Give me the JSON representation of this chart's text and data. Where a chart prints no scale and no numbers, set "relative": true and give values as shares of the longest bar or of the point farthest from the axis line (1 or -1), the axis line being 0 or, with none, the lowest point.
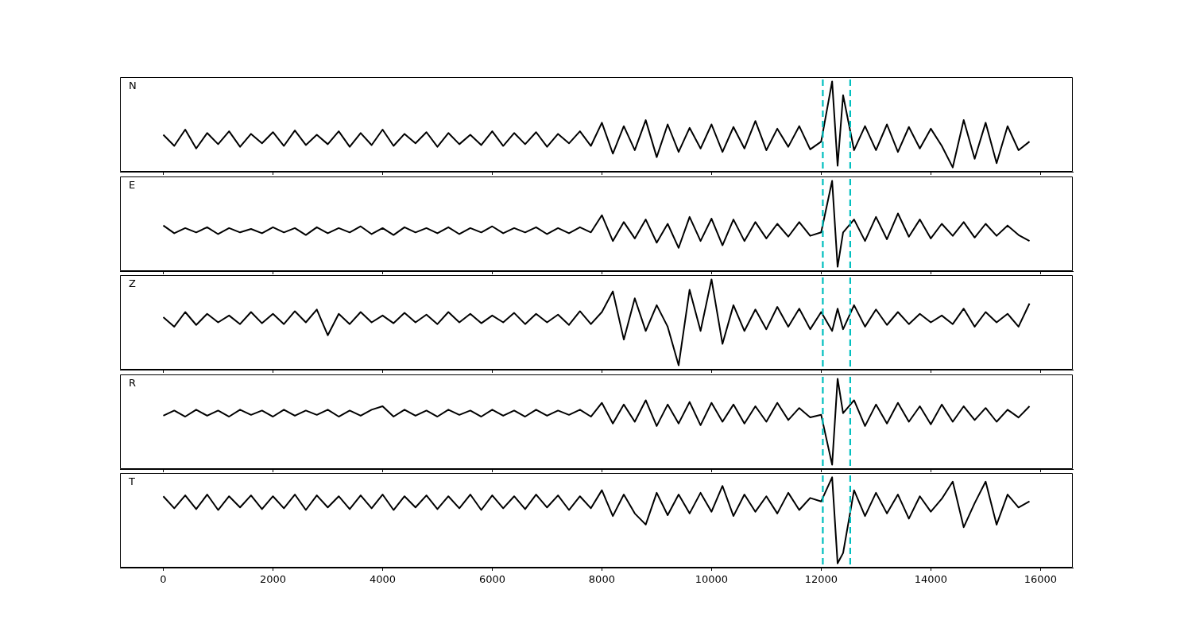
{
  "chart_data": [
    {
      "type": "line",
      "title": "N",
      "relative": true,
      "tick_labels": false,
      "xlim": [
        -790,
        16590
      ],
      "xticks": [
        0,
        2000,
        4000,
        6000,
        8000,
        10000,
        12000,
        14000,
        16000
      ],
      "x": [
        0,
        200,
        400,
        600,
        800,
        1000,
        1200,
        1400,
        1600,
        1800,
        2000,
        2200,
        2400,
        2600,
        2800,
        3000,
        3200,
        3400,
        3600,
        3800,
        4000,
        4200,
        4400,
        4600,
        4800,
        5000,
        5200,
        5400,
        5600,
        5800,
        6000,
        6200,
        6400,
        6600,
        6800,
        7000,
        7200,
        7400,
        7600,
        7800,
        8000,
        8200,
        8400,
        8600,
        8800,
        9000,
        9200,
        9400,
        9600,
        9800,
        10000,
        10200,
        10400,
        10600,
        10800,
        11000,
        11200,
        11400,
        11600,
        11800,
        12000,
        12200,
        12300,
        12400,
        12600,
        12800,
        13000,
        13200,
        13400,
        13600,
        13800,
        14000,
        14200,
        14400,
        14600,
        14800,
        15000,
        15200,
        15400,
        15600,
        15800
      ],
      "series": [
        {
          "color": "#000000",
          "values": [
            0.38,
            0.25,
            0.44,
            0.22,
            0.4,
            0.27,
            0.42,
            0.24,
            0.39,
            0.28,
            0.41,
            0.25,
            0.43,
            0.26,
            0.38,
            0.27,
            0.42,
            0.24,
            0.4,
            0.26,
            0.44,
            0.25,
            0.39,
            0.28,
            0.41,
            0.24,
            0.4,
            0.27,
            0.38,
            0.26,
            0.42,
            0.25,
            0.4,
            0.27,
            0.41,
            0.24,
            0.39,
            0.28,
            0.42,
            0.25,
            0.52,
            0.16,
            0.48,
            0.2,
            0.55,
            0.12,
            0.5,
            0.18,
            0.46,
            0.22,
            0.5,
            0.18,
            0.47,
            0.22,
            0.54,
            0.2,
            0.45,
            0.24,
            0.48,
            0.21,
            0.3,
            1.0,
            0.02,
            0.84,
            0.2,
            0.48,
            0.2,
            0.5,
            0.18,
            0.47,
            0.22,
            0.45,
            0.25,
            0,
            0.55,
            0.1,
            0.52,
            0.05,
            0.48,
            0.2,
            0.3
          ]
        }
      ],
      "ref_lines": [
        {
          "axis": "x",
          "value": 12030,
          "color": "#00bfbf",
          "line_style": "dashed"
        },
        {
          "axis": "x",
          "value": 12530,
          "color": "#00bfbf",
          "line_style": "dashed"
        }
      ]
    },
    {
      "type": "line",
      "title": "E",
      "relative": true,
      "tick_labels": false,
      "xlim": [
        -790,
        16590
      ],
      "xticks": [
        0,
        2000,
        4000,
        6000,
        8000,
        10000,
        12000,
        14000,
        16000
      ],
      "x": [
        0,
        200,
        400,
        600,
        800,
        1000,
        1200,
        1400,
        1600,
        1800,
        2000,
        2200,
        2400,
        2600,
        2800,
        3000,
        3200,
        3400,
        3600,
        3800,
        4000,
        4200,
        4400,
        4600,
        4800,
        5000,
        5200,
        5400,
        5600,
        5800,
        6000,
        6200,
        6400,
        6600,
        6800,
        7000,
        7200,
        7400,
        7600,
        7800,
        8000,
        8200,
        8400,
        8600,
        8800,
        9000,
        9200,
        9400,
        9600,
        9800,
        10000,
        10200,
        10400,
        10600,
        10800,
        11000,
        11200,
        11400,
        11600,
        11800,
        12000,
        12200,
        12300,
        12400,
        12600,
        12800,
        13000,
        13200,
        13400,
        13600,
        13800,
        14000,
        14200,
        14400,
        14600,
        14800,
        15000,
        15200,
        15400,
        15600,
        15800
      ],
      "series": [
        {
          "color": "#000000",
          "values": [
            0.48,
            0.39,
            0.45,
            0.4,
            0.46,
            0.38,
            0.45,
            0.4,
            0.44,
            0.39,
            0.46,
            0.4,
            0.45,
            0.37,
            0.46,
            0.39,
            0.45,
            0.4,
            0.47,
            0.38,
            0.45,
            0.37,
            0.46,
            0.4,
            0.45,
            0.39,
            0.46,
            0.38,
            0.45,
            0.4,
            0.47,
            0.39,
            0.45,
            0.4,
            0.46,
            0.38,
            0.45,
            0.39,
            0.46,
            0.4,
            0.6,
            0.3,
            0.52,
            0.33,
            0.55,
            0.28,
            0.5,
            0.22,
            0.58,
            0.3,
            0.56,
            0.25,
            0.55,
            0.3,
            0.52,
            0.33,
            0.5,
            0.35,
            0.52,
            0.36,
            0.4,
            1.0,
            0,
            0.4,
            0.55,
            0.3,
            0.58,
            0.32,
            0.62,
            0.35,
            0.55,
            0.33,
            0.5,
            0.36,
            0.52,
            0.34,
            0.5,
            0.36,
            0.48,
            0.37,
            0.3
          ]
        }
      ],
      "ref_lines": [
        {
          "axis": "x",
          "value": 12030,
          "color": "#00bfbf",
          "line_style": "dashed"
        },
        {
          "axis": "x",
          "value": 12530,
          "color": "#00bfbf",
          "line_style": "dashed"
        }
      ]
    },
    {
      "type": "line",
      "title": "Z",
      "relative": true,
      "tick_labels": false,
      "xlim": [
        -790,
        16590
      ],
      "xticks": [
        0,
        2000,
        4000,
        6000,
        8000,
        10000,
        12000,
        14000,
        16000
      ],
      "x": [
        0,
        200,
        400,
        600,
        800,
        1000,
        1200,
        1400,
        1600,
        1800,
        2000,
        2200,
        2400,
        2600,
        2800,
        3000,
        3200,
        3400,
        3600,
        3800,
        4000,
        4200,
        4400,
        4600,
        4800,
        5000,
        5200,
        5400,
        5600,
        5800,
        6000,
        6200,
        6400,
        6600,
        6800,
        7000,
        7200,
        7400,
        7600,
        7800,
        8000,
        8200,
        8400,
        8600,
        8800,
        9000,
        9200,
        9400,
        9600,
        9800,
        10000,
        10200,
        10400,
        10600,
        10800,
        11000,
        11200,
        11400,
        11600,
        11800,
        12000,
        12200,
        12300,
        12400,
        12600,
        12800,
        13000,
        13200,
        13400,
        13600,
        13800,
        14000,
        14200,
        14400,
        14600,
        14800,
        15000,
        15200,
        15400,
        15600,
        15800
      ],
      "series": [
        {
          "color": "#000000",
          "values": [
            0.56,
            0.45,
            0.62,
            0.47,
            0.6,
            0.5,
            0.58,
            0.48,
            0.62,
            0.49,
            0.6,
            0.48,
            0.63,
            0.5,
            0.65,
            0.35,
            0.6,
            0.48,
            0.62,
            0.5,
            0.58,
            0.49,
            0.61,
            0.5,
            0.59,
            0.48,
            0.62,
            0.5,
            0.6,
            0.49,
            0.58,
            0.5,
            0.61,
            0.48,
            0.6,
            0.5,
            0.59,
            0.47,
            0.63,
            0.48,
            0.62,
            0.86,
            0.3,
            0.78,
            0.4,
            0.7,
            0.45,
            0,
            0.88,
            0.4,
            1.0,
            0.25,
            0.7,
            0.4,
            0.65,
            0.42,
            0.68,
            0.45,
            0.66,
            0.42,
            0.62,
            0.4,
            0.66,
            0.42,
            0.7,
            0.45,
            0.65,
            0.47,
            0.62,
            0.48,
            0.6,
            0.5,
            0.58,
            0.48,
            0.66,
            0.45,
            0.62,
            0.5,
            0.6,
            0.45,
            0.72
          ]
        }
      ],
      "ref_lines": [
        {
          "axis": "x",
          "value": 12030,
          "color": "#00bfbf",
          "line_style": "dashed"
        },
        {
          "axis": "x",
          "value": 12530,
          "color": "#00bfbf",
          "line_style": "dashed"
        }
      ]
    },
    {
      "type": "line",
      "title": "R",
      "relative": true,
      "tick_labels": false,
      "xlim": [
        -790,
        16590
      ],
      "xticks": [
        0,
        2000,
        4000,
        6000,
        8000,
        10000,
        12000,
        14000,
        16000
      ],
      "x": [
        0,
        200,
        400,
        600,
        800,
        1000,
        1200,
        1400,
        1600,
        1800,
        2000,
        2200,
        2400,
        2600,
        2800,
        3000,
        3200,
        3400,
        3600,
        3800,
        4000,
        4200,
        4400,
        4600,
        4800,
        5000,
        5200,
        5400,
        5600,
        5800,
        6000,
        6200,
        6400,
        6600,
        6800,
        7000,
        7200,
        7400,
        7600,
        7800,
        8000,
        8200,
        8400,
        8600,
        8800,
        9000,
        9200,
        9400,
        9600,
        9800,
        10000,
        10200,
        10400,
        10600,
        10800,
        11000,
        11200,
        11400,
        11600,
        11800,
        12000,
        12200,
        12300,
        12400,
        12600,
        12800,
        13000,
        13200,
        13400,
        13600,
        13800,
        14000,
        14200,
        14400,
        14600,
        14800,
        15000,
        15200,
        15400,
        15600,
        15800
      ],
      "series": [
        {
          "color": "#000000",
          "values": [
            0.57,
            0.63,
            0.56,
            0.64,
            0.57,
            0.63,
            0.56,
            0.64,
            0.58,
            0.63,
            0.56,
            0.64,
            0.57,
            0.63,
            0.58,
            0.64,
            0.56,
            0.63,
            0.57,
            0.64,
            0.68,
            0.56,
            0.64,
            0.57,
            0.63,
            0.56,
            0.64,
            0.58,
            0.63,
            0.56,
            0.64,
            0.57,
            0.63,
            0.56,
            0.64,
            0.57,
            0.63,
            0.58,
            0.64,
            0.56,
            0.72,
            0.48,
            0.7,
            0.5,
            0.75,
            0.45,
            0.7,
            0.48,
            0.73,
            0.46,
            0.72,
            0.5,
            0.7,
            0.48,
            0.68,
            0.5,
            0.72,
            0.52,
            0.66,
            0.55,
            0.58,
            0,
            1.0,
            0.6,
            0.75,
            0.45,
            0.7,
            0.48,
            0.72,
            0.5,
            0.68,
            0.47,
            0.7,
            0.5,
            0.68,
            0.52,
            0.66,
            0.5,
            0.64,
            0.55,
            0.68
          ]
        }
      ],
      "ref_lines": [
        {
          "axis": "x",
          "value": 12030,
          "color": "#00bfbf",
          "line_style": "dashed"
        },
        {
          "axis": "x",
          "value": 12530,
          "color": "#00bfbf",
          "line_style": "dashed"
        }
      ]
    },
    {
      "type": "line",
      "title": "T",
      "relative": true,
      "tick_labels": "x",
      "xlim": [
        -790,
        16590
      ],
      "xticks": [
        0,
        2000,
        4000,
        6000,
        8000,
        10000,
        12000,
        14000,
        16000
      ],
      "x": [
        0,
        200,
        400,
        600,
        800,
        1000,
        1200,
        1400,
        1600,
        1800,
        2000,
        2200,
        2400,
        2600,
        2800,
        3000,
        3200,
        3400,
        3600,
        3800,
        4000,
        4200,
        4400,
        4600,
        4800,
        5000,
        5200,
        5400,
        5600,
        5800,
        6000,
        6200,
        6400,
        6600,
        6800,
        7000,
        7200,
        7400,
        7600,
        7800,
        8000,
        8200,
        8400,
        8600,
        8800,
        9000,
        9200,
        9400,
        9600,
        9800,
        10000,
        10200,
        10400,
        10600,
        10800,
        11000,
        11200,
        11400,
        11600,
        11800,
        12000,
        12200,
        12300,
        12400,
        12600,
        12800,
        13000,
        13200,
        13400,
        13600,
        13800,
        14000,
        14200,
        14400,
        14600,
        14800,
        15000,
        15200,
        15400,
        15600,
        15800
      ],
      "series": [
        {
          "color": "#000000",
          "values": [
            0.78,
            0.64,
            0.79,
            0.63,
            0.8,
            0.62,
            0.78,
            0.65,
            0.79,
            0.63,
            0.78,
            0.64,
            0.8,
            0.62,
            0.79,
            0.65,
            0.78,
            0.63,
            0.79,
            0.64,
            0.8,
            0.62,
            0.78,
            0.65,
            0.79,
            0.63,
            0.78,
            0.64,
            0.8,
            0.62,
            0.79,
            0.64,
            0.78,
            0.63,
            0.8,
            0.65,
            0.79,
            0.62,
            0.78,
            0.64,
            0.85,
            0.55,
            0.8,
            0.58,
            0.45,
            0.82,
            0.56,
            0.8,
            0.58,
            0.82,
            0.6,
            0.9,
            0.55,
            0.8,
            0.6,
            0.78,
            0.58,
            0.82,
            0.62,
            0.76,
            0.72,
            1.0,
            0,
            0.12,
            0.85,
            0.55,
            0.82,
            0.58,
            0.8,
            0.52,
            0.78,
            0.6,
            0.75,
            0.95,
            0.42,
            0.7,
            0.95,
            0.45,
            0.8,
            0.65,
            0.72
          ]
        }
      ],
      "ref_lines": [
        {
          "axis": "x",
          "value": 12030,
          "color": "#00bfbf",
          "line_style": "dashed"
        },
        {
          "axis": "x",
          "value": 12530,
          "color": "#00bfbf",
          "line_style": "dashed"
        }
      ]
    }
  ]
}
